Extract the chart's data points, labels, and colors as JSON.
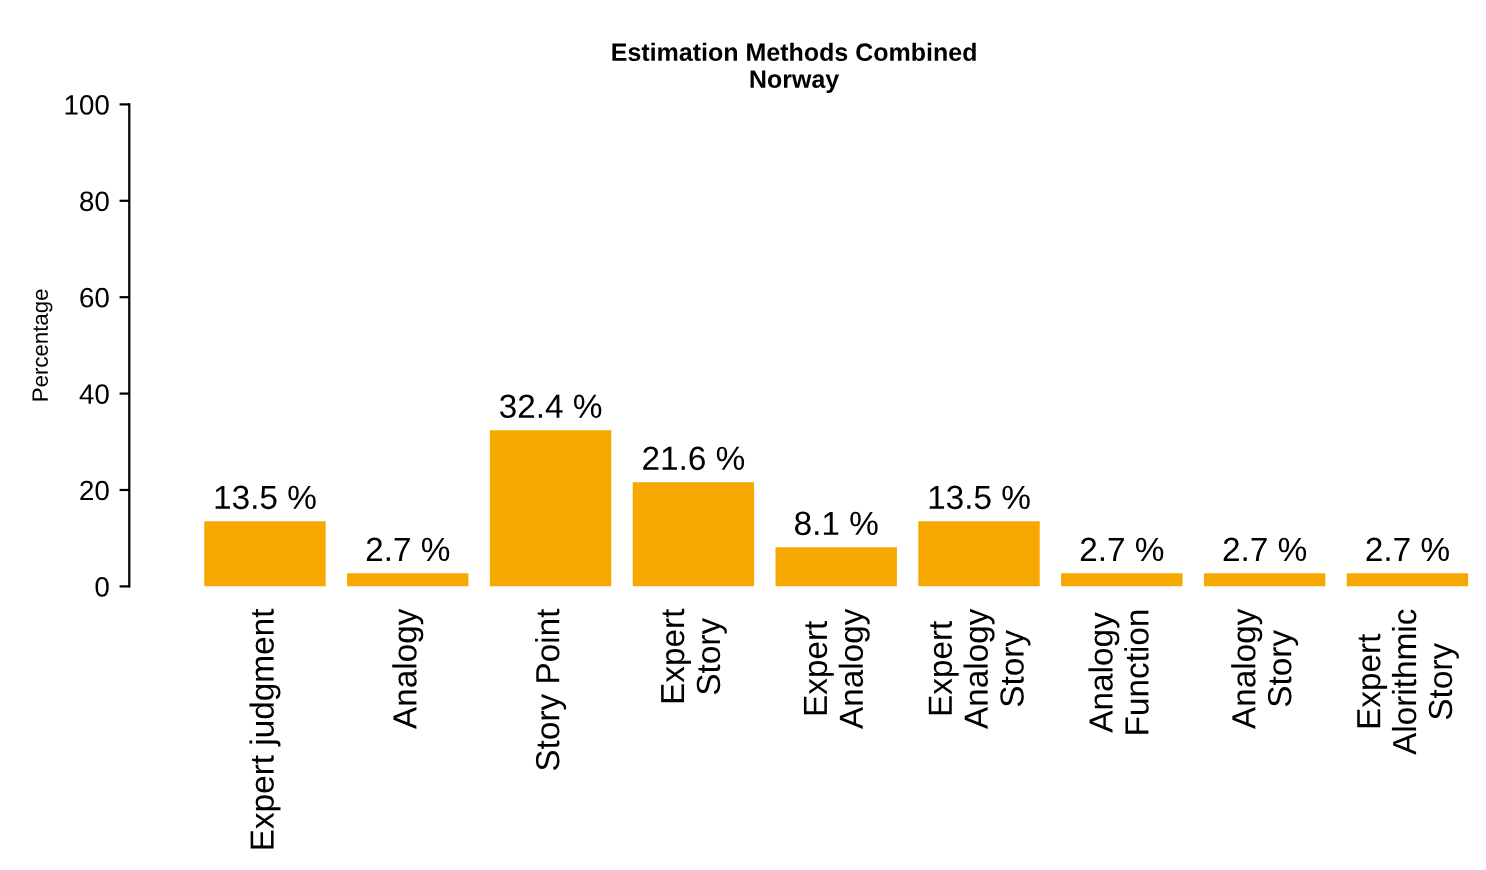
{
  "chart_data": {
    "type": "bar",
    "title": "Estimation Methods Combined\nNorway",
    "ylabel": "Percentage",
    "categories": [
      "Expert judgment",
      "Analogy",
      "Story Point",
      "Expert\nStory",
      "Expert\nAnalogy",
      "Expert\nAnalogy\nStory",
      "Analogy\nFunction",
      "Analogy\nStory",
      "Expert\nAlorithmic\nStory"
    ],
    "values": [
      13.5,
      2.7,
      32.4,
      21.6,
      8.1,
      13.5,
      2.7,
      2.7,
      2.7
    ],
    "value_labels": [
      "13.5 %",
      "2.7 %",
      "32.4 %",
      "21.6 %",
      "8.1 %",
      "13.5 %",
      "2.7 %",
      "2.7 %",
      "2.7 %"
    ],
    "color": "#f7a800",
    "ylim": [
      0,
      100
    ],
    "yticks": [
      0,
      20,
      40,
      60,
      80,
      100
    ],
    "grid": false,
    "legend": false
  }
}
